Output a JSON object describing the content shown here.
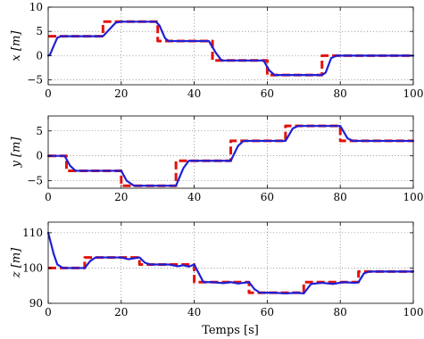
{
  "figure": {
    "xlabel": "Temps [s]"
  },
  "chart_data": [
    {
      "type": "line",
      "ylabel": "x [m]",
      "xlim": [
        0,
        100
      ],
      "ylim": [
        -6,
        10
      ],
      "xticks": [
        0,
        20,
        40,
        60,
        80,
        100
      ],
      "yticks": [
        -5,
        0,
        5,
        10
      ],
      "grid": true,
      "series": [
        {
          "color": "#e3120b",
          "style": "dashed",
          "x": [
            0,
            15,
            15,
            30,
            30,
            45,
            45,
            60,
            60,
            75,
            75,
            100
          ],
          "y": [
            4,
            4,
            7,
            7,
            3,
            3,
            -1,
            -1,
            -4,
            -4,
            0,
            0
          ]
        },
        {
          "color": "#1f1fd6",
          "style": "solid",
          "x": [
            0,
            0.5,
            1.5,
            2.5,
            3.5,
            15,
            16.5,
            18.5,
            20,
            29.5,
            30.5,
            32,
            33,
            44,
            46,
            47.5,
            59,
            60.5,
            62,
            75,
            76,
            77.5,
            79,
            100
          ],
          "y": [
            0,
            0.2,
            2,
            3.7,
            4,
            4,
            5.2,
            6.8,
            7,
            7,
            6.2,
            3.6,
            3,
            3,
            0.5,
            -1,
            -1,
            -3,
            -4,
            -4,
            -3.5,
            -0.5,
            0,
            0
          ]
        }
      ]
    },
    {
      "type": "line",
      "ylabel": "y [m]",
      "xlim": [
        0,
        100
      ],
      "ylim": [
        -6.5,
        8
      ],
      "xticks": [
        0,
        20,
        40,
        60,
        80,
        100
      ],
      "yticks": [
        -5,
        0,
        5
      ],
      "grid": true,
      "series": [
        {
          "color": "#e3120b",
          "style": "dashed",
          "x": [
            0,
            5,
            5,
            20,
            20,
            35,
            35,
            50,
            50,
            65,
            65,
            80,
            80,
            100
          ],
          "y": [
            0,
            0,
            -3,
            -3,
            -6,
            -6,
            -1,
            -1,
            3,
            3,
            6,
            6,
            3,
            3
          ]
        },
        {
          "color": "#1f1fd6",
          "style": "solid",
          "x": [
            0,
            4.5,
            6,
            7.5,
            20,
            21.5,
            23.5,
            35,
            37,
            38.5,
            50,
            52,
            53.5,
            65,
            67,
            68.5,
            80,
            82,
            83.5,
            100
          ],
          "y": [
            0,
            0,
            -2,
            -3,
            -3,
            -5,
            -6,
            -6,
            -2.5,
            -1,
            -1,
            2,
            3,
            3,
            5.5,
            6,
            6,
            3.5,
            3,
            3
          ]
        }
      ]
    },
    {
      "type": "line",
      "ylabel": "z [m]",
      "xlabel": "Temps [s]",
      "xlim": [
        0,
        100
      ],
      "ylim": [
        90,
        113
      ],
      "xticks": [
        0,
        20,
        40,
        60,
        80,
        100
      ],
      "yticks": [
        90,
        100,
        110
      ],
      "grid": true,
      "series": [
        {
          "color": "#e3120b",
          "style": "dashed",
          "x": [
            0,
            10,
            10,
            25,
            25,
            40,
            40,
            55,
            55,
            70,
            70,
            85,
            85,
            100
          ],
          "y": [
            100,
            100,
            103,
            103,
            101,
            101,
            96,
            96,
            93,
            93,
            96,
            96,
            99,
            99
          ]
        },
        {
          "color": "#1f1fd6",
          "style": "solid",
          "x": [
            0,
            0.5,
            1.5,
            2.5,
            4,
            10,
            11.5,
            13,
            20,
            22,
            25,
            26.5,
            28,
            33,
            35.5,
            37,
            38.5,
            40,
            41.5,
            42.5,
            45,
            48,
            50,
            52,
            55,
            56.5,
            58,
            62,
            65,
            68,
            70,
            72,
            75,
            78,
            81,
            84,
            85,
            86.5,
            88,
            100
          ],
          "y": [
            110,
            108,
            104,
            101,
            100,
            100,
            102,
            103,
            103,
            102.5,
            103,
            101.5,
            101,
            101,
            100.5,
            100.8,
            100.4,
            101,
            98,
            96,
            96,
            95.7,
            96,
            95.6,
            96,
            94,
            93,
            93,
            92.8,
            93,
            92.8,
            95.5,
            95.8,
            95.5,
            96,
            95.8,
            96,
            98.5,
            99,
            99
          ]
        }
      ]
    }
  ]
}
